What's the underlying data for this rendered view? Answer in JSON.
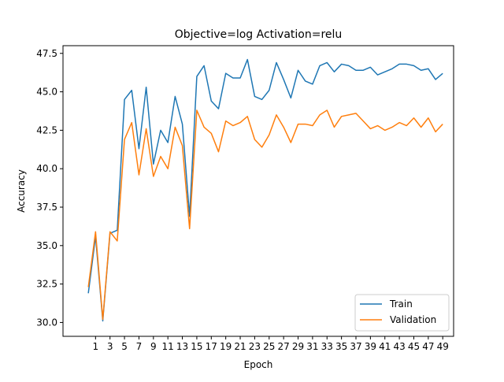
{
  "chart_data": {
    "type": "line",
    "title": "Objective=log Activation=relu",
    "xlabel": "Epoch",
    "ylabel": "Accuracy",
    "xlim": [
      -3.5,
      50.5
    ],
    "ylim": [
      29.1,
      48.0
    ],
    "x_ticks": [
      1,
      3,
      5,
      7,
      9,
      11,
      13,
      15,
      17,
      19,
      21,
      23,
      25,
      27,
      29,
      31,
      33,
      35,
      37,
      39,
      41,
      43,
      45,
      47,
      49
    ],
    "y_ticks": [
      30.0,
      32.5,
      35.0,
      37.5,
      40.0,
      42.5,
      45.0,
      47.5
    ],
    "y_tick_labels": [
      "30.0",
      "32.5",
      "35.0",
      "37.5",
      "40.0",
      "42.5",
      "45.0",
      "47.5"
    ],
    "grid": false,
    "legend_position": "lower-right",
    "x": [
      0,
      1,
      2,
      3,
      4,
      5,
      6,
      7,
      8,
      9,
      10,
      11,
      12,
      13,
      14,
      15,
      16,
      17,
      18,
      19,
      20,
      21,
      22,
      23,
      24,
      25,
      26,
      27,
      28,
      29,
      30,
      31,
      32,
      33,
      34,
      35,
      36,
      37,
      38,
      39,
      40,
      41,
      42,
      43,
      44,
      45,
      46,
      47,
      48,
      49
    ],
    "series": [
      {
        "name": "Train",
        "color": "#1f77b4",
        "values": [
          31.9,
          35.6,
          30.1,
          35.8,
          36.0,
          44.5,
          45.1,
          41.3,
          45.3,
          40.3,
          42.5,
          41.7,
          44.7,
          42.9,
          36.9,
          46.0,
          46.7,
          44.4,
          43.9,
          46.2,
          45.9,
          45.9,
          47.1,
          44.7,
          44.5,
          45.1,
          46.9,
          45.8,
          44.6,
          46.4,
          45.7,
          45.5,
          46.7,
          46.9,
          46.3,
          46.8,
          46.7,
          46.4,
          46.4,
          46.6,
          46.1,
          46.3,
          46.5,
          46.8,
          46.8,
          46.7,
          46.4,
          46.5,
          45.8,
          46.2
        ]
      },
      {
        "name": "Validation",
        "color": "#ff7f0e",
        "values": [
          32.3,
          35.9,
          30.2,
          35.9,
          35.3,
          41.9,
          43.0,
          39.6,
          42.6,
          39.5,
          40.8,
          40.0,
          42.7,
          41.5,
          36.1,
          43.8,
          42.7,
          42.3,
          41.1,
          43.1,
          42.8,
          43.0,
          43.4,
          41.9,
          41.4,
          42.2,
          43.5,
          42.7,
          41.7,
          42.9,
          42.9,
          42.8,
          43.5,
          43.8,
          42.7,
          43.4,
          43.5,
          43.6,
          43.1,
          42.6,
          42.8,
          42.5,
          42.7,
          43.0,
          42.8,
          43.3,
          42.7,
          43.3,
          42.4,
          42.9
        ]
      }
    ]
  }
}
